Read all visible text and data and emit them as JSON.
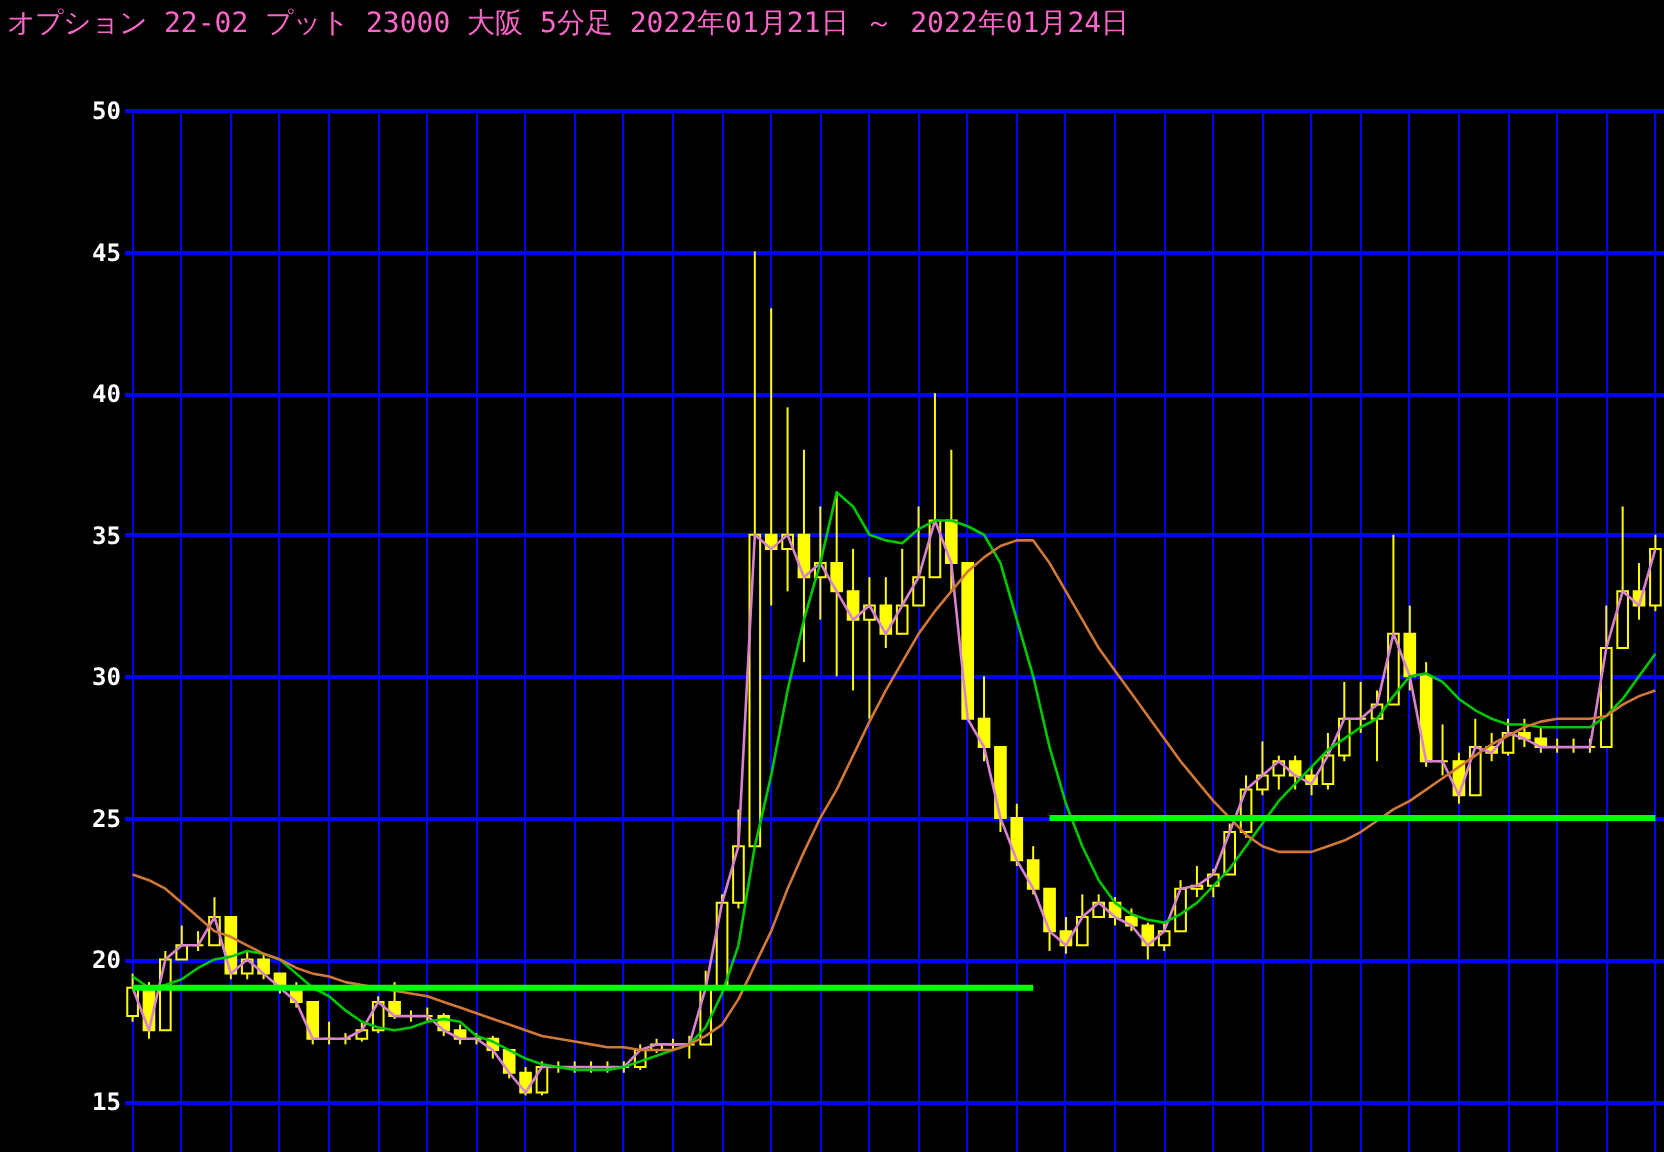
{
  "chart_data": {
    "type": "candlestick",
    "title": "オプション 22-02 プット 23000 大阪 5分足 2022年01月21日 ～ 2022年01月24日",
    "categories": [
      null,
      null,
      null,
      null,
      null,
      null,
      null,
      null,
      null,
      null,
      null,
      null,
      null,
      null,
      null,
      null,
      null,
      null,
      null,
      null,
      null,
      null,
      null,
      null,
      null,
      null,
      null,
      null,
      null,
      null,
      null,
      null,
      null,
      null,
      null,
      null,
      null,
      null,
      null,
      null,
      null,
      null,
      null,
      null,
      null,
      null,
      null,
      null,
      null,
      null,
      null,
      null,
      null,
      null,
      null,
      null,
      null,
      null,
      null,
      null,
      null,
      null,
      null,
      null,
      null,
      null,
      null,
      null,
      null,
      null,
      null,
      null,
      null,
      null,
      null,
      null,
      null,
      null,
      null,
      null,
      null,
      null,
      null,
      null,
      null,
      null,
      null,
      null,
      null,
      null,
      null,
      null,
      null,
      null
    ],
    "color": "#ffff00",
    "ohlc": [
      [
        18,
        19.5,
        17.8,
        19
      ],
      [
        19,
        19.2,
        17.2,
        17.5
      ],
      [
        17.5,
        20.3,
        17.5,
        20
      ],
      [
        20,
        21.2,
        20,
        20.5
      ],
      [
        20.5,
        21,
        20.3,
        20.5
      ],
      [
        20.5,
        22.2,
        20.5,
        21.5
      ],
      [
        21.5,
        21.5,
        19.3,
        19.5
      ],
      [
        19.5,
        20.3,
        19.3,
        20
      ],
      [
        20,
        20.2,
        19.3,
        19.5
      ],
      [
        19.5,
        19.5,
        18.8,
        19
      ],
      [
        19,
        19.2,
        18.3,
        18.5
      ],
      [
        18.5,
        18.5,
        17,
        17.2
      ],
      [
        17.2,
        17.8,
        17,
        17.2
      ],
      [
        17.2,
        17.4,
        17,
        17.2
      ],
      [
        17.2,
        17.8,
        17.1,
        17.5
      ],
      [
        17.5,
        18.7,
        17.4,
        18.5
      ],
      [
        18.5,
        19.2,
        17.9,
        18
      ],
      [
        18,
        18.2,
        17.8,
        18
      ],
      [
        18,
        18.3,
        17.8,
        18
      ],
      [
        18,
        18.1,
        17.3,
        17.5
      ],
      [
        17.5,
        17.7,
        17,
        17.2
      ],
      [
        17.2,
        17.4,
        17,
        17.2
      ],
      [
        17.2,
        17.3,
        16.5,
        16.8
      ],
      [
        16.8,
        16.8,
        15.8,
        16
      ],
      [
        16,
        16.2,
        15.2,
        15.3
      ],
      [
        15.3,
        16.4,
        15.2,
        16.2
      ],
      [
        16.2,
        16.4,
        16,
        16.2
      ],
      [
        16.2,
        16.4,
        16,
        16.2
      ],
      [
        16.2,
        16.4,
        16,
        16.2
      ],
      [
        16.2,
        16.4,
        16,
        16.2
      ],
      [
        16.2,
        16.4,
        16,
        16.2
      ],
      [
        16.2,
        17,
        16.1,
        16.8
      ],
      [
        16.8,
        17.2,
        16.7,
        17
      ],
      [
        17,
        17.2,
        16.8,
        17
      ],
      [
        17,
        17.3,
        16.5,
        17
      ],
      [
        17,
        19.6,
        17,
        19
      ],
      [
        19,
        22.3,
        19,
        22
      ],
      [
        22,
        25.3,
        21.8,
        24
      ],
      [
        24,
        45,
        24,
        35
      ],
      [
        35,
        43,
        32.5,
        34.5
      ],
      [
        34.5,
        39.5,
        33,
        35
      ],
      [
        35,
        38,
        30.5,
        33.5
      ],
      [
        33.5,
        36,
        32,
        34
      ],
      [
        34,
        36.5,
        30,
        33
      ],
      [
        33,
        34.5,
        29.5,
        32
      ],
      [
        32,
        33.5,
        28.5,
        32.5
      ],
      [
        32.5,
        33.5,
        31,
        31.5
      ],
      [
        31.5,
        34.5,
        31.5,
        32.5
      ],
      [
        32.5,
        36,
        32.5,
        33.5
      ],
      [
        33.5,
        40,
        33.5,
        35.5
      ],
      [
        35.5,
        38,
        33,
        34
      ],
      [
        34,
        34,
        28.5,
        28.5
      ],
      [
        28.5,
        30,
        27,
        27.5
      ],
      [
        27.5,
        27.5,
        24.5,
        25
      ],
      [
        25,
        25.5,
        23.3,
        23.5
      ],
      [
        23.5,
        24,
        22.3,
        22.5
      ],
      [
        22.5,
        22.5,
        20.3,
        21
      ],
      [
        21,
        21.5,
        20.2,
        20.5
      ],
      [
        20.5,
        22.3,
        20.5,
        21.5
      ],
      [
        21.5,
        22.3,
        21.5,
        22
      ],
      [
        22,
        22.2,
        21.2,
        21.5
      ],
      [
        21.5,
        21.8,
        21,
        21.2
      ],
      [
        21.2,
        21.3,
        20,
        20.5
      ],
      [
        20.5,
        21.3,
        20.3,
        21
      ],
      [
        21,
        22.8,
        21,
        22.5
      ],
      [
        22.5,
        23.3,
        22.2,
        22.6
      ],
      [
        22.6,
        23.2,
        22.2,
        23
      ],
      [
        23,
        24.8,
        23,
        24.5
      ],
      [
        24.5,
        26.5,
        24.3,
        26
      ],
      [
        26,
        27.7,
        25.8,
        26.5
      ],
      [
        26.5,
        27.2,
        26,
        27
      ],
      [
        27,
        27.2,
        26,
        26.5
      ],
      [
        26.5,
        26.8,
        25.8,
        26.2
      ],
      [
        26.2,
        28,
        26,
        27.2
      ],
      [
        27.2,
        29.8,
        27,
        28.5
      ],
      [
        28.5,
        29.8,
        28,
        28.5
      ],
      [
        28.5,
        29.5,
        27,
        29
      ],
      [
        29,
        35,
        29,
        31.5
      ],
      [
        31.5,
        32.5,
        29.5,
        30
      ],
      [
        30,
        30.5,
        26.8,
        27
      ],
      [
        27,
        28.3,
        26.5,
        27
      ],
      [
        27,
        27.3,
        25.5,
        25.8
      ],
      [
        25.8,
        28.5,
        25.8,
        27.5
      ],
      [
        27.5,
        28,
        27,
        27.3
      ],
      [
        27.3,
        28.5,
        27.2,
        28
      ],
      [
        28,
        28.5,
        27.5,
        27.8
      ],
      [
        27.8,
        28.2,
        27.3,
        27.5
      ],
      [
        27.5,
        27.8,
        27.3,
        27.5
      ],
      [
        27.5,
        27.8,
        27.3,
        27.5
      ],
      [
        27.5,
        27.8,
        27.3,
        27.5
      ],
      [
        27.5,
        32.5,
        27.5,
        31
      ],
      [
        31,
        36,
        31,
        33
      ],
      [
        33,
        34,
        32,
        32.5
      ],
      [
        32.5,
        35,
        32.3,
        34.5
      ]
    ],
    "series": [
      {
        "type": "line",
        "color": "#d883d0",
        "values": [
          19,
          17.5,
          20,
          20.5,
          20.5,
          21.5,
          19.5,
          20,
          19.5,
          19,
          18.5,
          17.2,
          17.2,
          17.2,
          17.5,
          18.5,
          18,
          18,
          18,
          17.5,
          17.2,
          17.2,
          16.8,
          16,
          15.3,
          16.2,
          16.2,
          16.2,
          16.2,
          16.2,
          16.2,
          16.8,
          17,
          17,
          17,
          19,
          22,
          24,
          35,
          34.5,
          35,
          33.5,
          34,
          33,
          32,
          32.5,
          31.5,
          32.5,
          33.5,
          35.5,
          34,
          28.5,
          27.5,
          25,
          23.5,
          22.5,
          21,
          20.5,
          21.5,
          22,
          21.5,
          21.2,
          20.5,
          21,
          22.5,
          22.6,
          23,
          24.5,
          26,
          26.5,
          27,
          26.5,
          26.2,
          27.2,
          28.5,
          28.5,
          29,
          31.5,
          30,
          27,
          27,
          25.8,
          27.5,
          27.3,
          28,
          27.8,
          27.5,
          27.5,
          27.5,
          27.5,
          31,
          33,
          32.5,
          34.5
        ]
      },
      {
        "type": "line",
        "color": "#00c800",
        "values": [
          19.4,
          19,
          19.1,
          19.3,
          19.7,
          20,
          20.1,
          20.3,
          20.2,
          20,
          19.5,
          19,
          18.7,
          18.2,
          17.8,
          17.6,
          17.5,
          17.6,
          17.8,
          17.9,
          17.8,
          17.3,
          17.1,
          16.8,
          16.5,
          16.3,
          16.2,
          16.1,
          16.1,
          16.1,
          16.2,
          16.4,
          16.6,
          16.8,
          17,
          17.6,
          18.8,
          20.5,
          24,
          26.5,
          29.5,
          32,
          34,
          36.5,
          36,
          35,
          34.8,
          34.7,
          35.2,
          35.5,
          35.5,
          35.3,
          35,
          34,
          32,
          30,
          27.5,
          25.5,
          24,
          22.8,
          22,
          21.6,
          21.4,
          21.3,
          21.6,
          22,
          22.6,
          23.2,
          24,
          24.8,
          25.6,
          26.2,
          26.8,
          27.4,
          27.8,
          28.2,
          28.5,
          29.3,
          30,
          30.1,
          29.8,
          29.2,
          28.8,
          28.5,
          28.3,
          28.3,
          28.2,
          28.2,
          28.2,
          28.2,
          28.6,
          29.2,
          30,
          30.8
        ]
      },
      {
        "type": "line",
        "color": "#d07838",
        "values": [
          23,
          22.8,
          22.5,
          22,
          21.5,
          21,
          20.8,
          20.5,
          20.2,
          20,
          19.7,
          19.5,
          19.4,
          19.2,
          19.1,
          19,
          18.9,
          18.8,
          18.7,
          18.5,
          18.3,
          18.1,
          17.9,
          17.7,
          17.5,
          17.3,
          17.2,
          17.1,
          17,
          16.9,
          16.9,
          16.8,
          16.8,
          16.8,
          17,
          17.3,
          17.7,
          18.6,
          19.8,
          21,
          22.5,
          23.8,
          25,
          26,
          27.2,
          28.4,
          29.5,
          30.5,
          31.5,
          32.3,
          33,
          33.7,
          34.2,
          34.6,
          34.8,
          34.8,
          34,
          33,
          32,
          31,
          30.2,
          29.4,
          28.6,
          27.8,
          27,
          26.3,
          25.6,
          25,
          24.4,
          24,
          23.8,
          23.8,
          23.8,
          24,
          24.2,
          24.5,
          24.9,
          25.3,
          25.6,
          26,
          26.4,
          26.8,
          27.2,
          27.6,
          27.9,
          28.2,
          28.4,
          28.5,
          28.5,
          28.5,
          28.6,
          29,
          29.3,
          29.5
        ]
      },
      {
        "type": "line",
        "color": "#00ff00",
        "values": [
          19,
          19,
          19,
          19,
          19,
          19,
          19,
          19,
          19,
          19,
          19,
          19,
          19,
          19,
          19,
          19,
          19,
          19,
          19,
          19,
          19,
          19,
          19,
          19,
          19,
          19,
          19,
          19,
          19,
          19,
          19,
          19,
          19,
          19,
          19,
          19,
          19,
          19,
          19,
          19,
          19,
          19,
          19,
          19,
          19,
          19,
          19,
          19,
          19,
          19,
          19,
          19,
          19,
          19,
          19,
          19,
          null,
          null,
          null,
          null,
          null,
          null,
          null,
          null,
          null,
          null,
          null,
          null,
          null,
          null,
          null,
          null,
          null,
          null,
          null,
          null,
          null,
          null,
          null,
          null,
          null,
          null,
          null,
          null,
          null,
          null,
          null,
          null,
          null,
          null,
          null,
          null,
          null,
          null
        ]
      },
      {
        "type": "line",
        "color": "#00ff00",
        "values": [
          null,
          null,
          null,
          null,
          null,
          null,
          null,
          null,
          null,
          null,
          null,
          null,
          null,
          null,
          null,
          null,
          null,
          null,
          null,
          null,
          null,
          null,
          null,
          null,
          null,
          null,
          null,
          null,
          null,
          null,
          null,
          null,
          null,
          null,
          null,
          null,
          null,
          null,
          null,
          null,
          null,
          null,
          null,
          null,
          null,
          null,
          null,
          null,
          null,
          null,
          null,
          null,
          null,
          null,
          null,
          null,
          25,
          25,
          25,
          25,
          25,
          25,
          25,
          25,
          25,
          25,
          25,
          25,
          25,
          25,
          25,
          25,
          25,
          25,
          25,
          25,
          25,
          25,
          25,
          25,
          25,
          25,
          25,
          25,
          25,
          25,
          25,
          25,
          25,
          25,
          25,
          25,
          25,
          25
        ]
      }
    ],
    "ylim": [
      13.2,
      50
    ],
    "yticks": [
      15,
      20,
      25,
      30,
      35,
      40,
      45,
      50
    ],
    "grid": true,
    "tick_labels": "y"
  }
}
